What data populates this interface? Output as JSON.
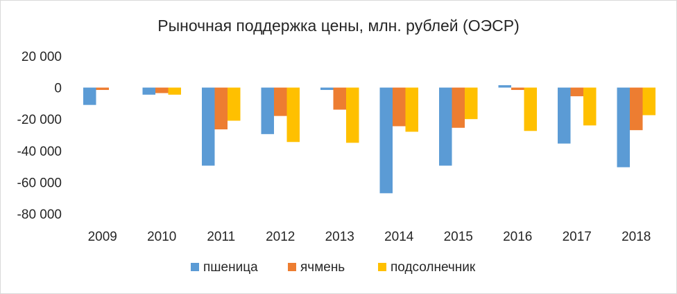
{
  "chart_data": {
    "type": "bar",
    "title": "Рыночная поддержка цены, млн. рублей (ОЭСР)",
    "categories": [
      "2009",
      "2010",
      "2011",
      "2012",
      "2013",
      "2014",
      "2015",
      "2016",
      "2017",
      "2018"
    ],
    "series": [
      {
        "name": "пшеница",
        "color": "#5b9bd5",
        "values": [
          -11000,
          -4500,
          -49500,
          -29500,
          -1500,
          -67000,
          -49500,
          1500,
          -35500,
          -50500
        ]
      },
      {
        "name": "ячмень",
        "color": "#ed7d31",
        "values": [
          -1500,
          -3500,
          -26500,
          -18000,
          -14000,
          -24500,
          -25500,
          -1500,
          -5500,
          -27000
        ]
      },
      {
        "name": "подсолнечник",
        "color": "#ffc000",
        "values": [
          0,
          -4500,
          -21000,
          -34500,
          -35000,
          -28000,
          -20000,
          -27500,
          -24000,
          -17500
        ]
      }
    ],
    "ylim": [
      -80000,
      20000
    ],
    "yticks": [
      20000,
      0,
      -20000,
      -40000,
      -60000,
      -80000
    ],
    "ytick_labels": [
      "20 000",
      "0",
      "-20 000",
      "-40 000",
      "-60 000",
      "-80 000"
    ],
    "grid": false,
    "legend_position": "bottom"
  }
}
